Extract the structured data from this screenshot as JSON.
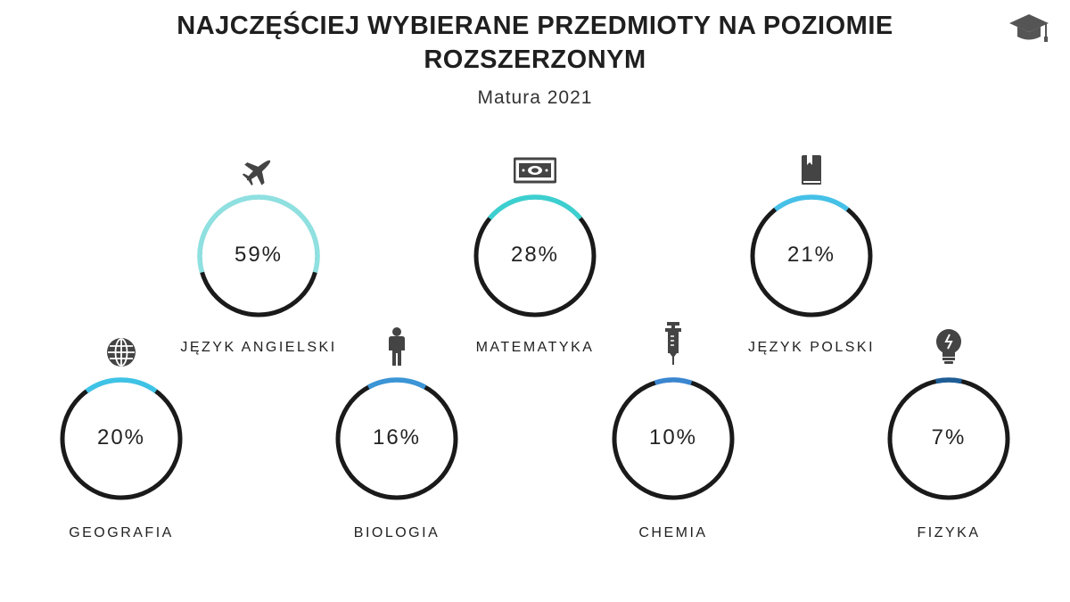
{
  "title": "NAJCZĘŚCIEJ WYBIERANE PRZEDMIOTY NA POZIOMIE\nROZSZERZONYM",
  "subtitle": "Matura 2021",
  "chart_data": {
    "type": "donut",
    "title": "NAJCZĘŚCIEJ WYBIERANE PRZEDMIOTY NA POZIOMIE ROZSZERZONYM",
    "subtitle": "Matura 2021",
    "categories": [
      "JĘZYK ANGIELSKI",
      "MATEMATYKA",
      "JĘZYK POLSKI",
      "GEOGRAFIA",
      "BIOLOGIA",
      "CHEMIA",
      "FIZYKA"
    ],
    "values": [
      59,
      28,
      21,
      20,
      16,
      10,
      7
    ],
    "unit": "%",
    "items": [
      {
        "label": "JĘZYK ANGIELSKI",
        "value": 59,
        "value_text": "59%",
        "color": "#8fe0e0",
        "icon": "airplane-icon"
      },
      {
        "label": "MATEMATYKA",
        "value": 28,
        "value_text": "28%",
        "color": "#3dcfcf",
        "icon": "banknote-icon"
      },
      {
        "label": "JĘZYK POLSKI",
        "value": 21,
        "value_text": "21%",
        "color": "#45c1e8",
        "icon": "book-icon"
      },
      {
        "label": "GEOGRAFIA",
        "value": 20,
        "value_text": "20%",
        "color": "#3ec3e6",
        "icon": "globe-icon"
      },
      {
        "label": "BIOLOGIA",
        "value": 16,
        "value_text": "16%",
        "color": "#3b95d6",
        "icon": "person-icon"
      },
      {
        "label": "CHEMIA",
        "value": 10,
        "value_text": "10%",
        "color": "#3a86d0",
        "icon": "syringe-icon"
      },
      {
        "label": "FIZYKA",
        "value": 7,
        "value_text": "7%",
        "color": "#1f5d96",
        "icon": "lightbulb-icon"
      }
    ],
    "track_color": "#1a1a1a"
  }
}
